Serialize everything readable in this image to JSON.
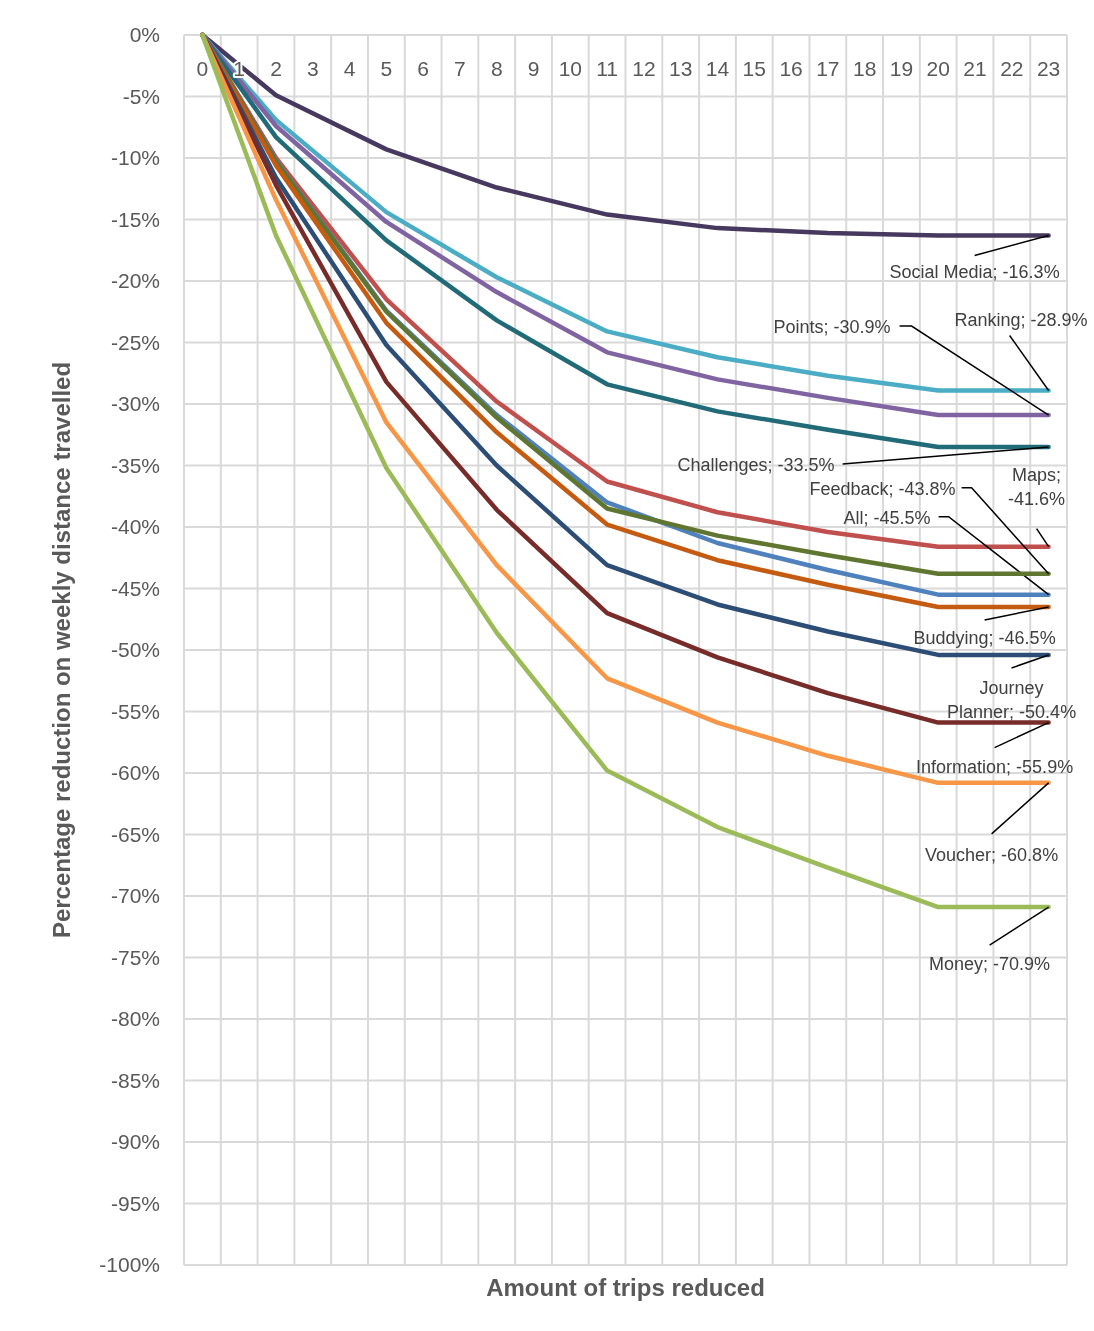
{
  "chart_data": {
    "type": "line",
    "xlabel": "Amount of trips reduced",
    "ylabel": "Percentage reduction on weekly distance travelled",
    "xlim": [
      -0.5,
      23.5
    ],
    "xticks": [
      0,
      1,
      2,
      3,
      4,
      5,
      6,
      7,
      8,
      9,
      10,
      11,
      12,
      13,
      14,
      15,
      16,
      17,
      18,
      19,
      20,
      21,
      22,
      23
    ],
    "ylim": [
      -100,
      0
    ],
    "yticks": [
      {
        "value": 0,
        "label": "0%"
      },
      {
        "value": -5,
        "label": "-5%"
      },
      {
        "value": -10,
        "label": "-10%"
      },
      {
        "value": -15,
        "label": "-15%"
      },
      {
        "value": -20,
        "label": "-20%"
      },
      {
        "value": -25,
        "label": "-25%"
      },
      {
        "value": -30,
        "label": "-30%"
      },
      {
        "value": -35,
        "label": "-35%"
      },
      {
        "value": -40,
        "label": "-40%"
      },
      {
        "value": -45,
        "label": "-45%"
      },
      {
        "value": -50,
        "label": "-50%"
      },
      {
        "value": -55,
        "label": "-55%"
      },
      {
        "value": -60,
        "label": "-60%"
      },
      {
        "value": -65,
        "label": "-65%"
      },
      {
        "value": -70,
        "label": "-70%"
      },
      {
        "value": -75,
        "label": "-75%"
      },
      {
        "value": -80,
        "label": "-80%"
      },
      {
        "value": -85,
        "label": "-85%"
      },
      {
        "value": -90,
        "label": "-90%"
      },
      {
        "value": -95,
        "label": "-95%"
      },
      {
        "value": -100,
        "label": "-100%"
      }
    ],
    "grid": true,
    "marker": "none",
    "line_style": "solid",
    "x": [
      0,
      2,
      5,
      8,
      11,
      14,
      17,
      20,
      23
    ],
    "series": [
      {
        "color": "#46385e",
        "values": [
          0,
          -4.9,
          -9.3,
          -12.4,
          -14.6,
          -15.7,
          -16.1,
          -16.3,
          -16.3
        ],
        "value_labels": [
          null,
          null,
          null,
          null,
          null,
          null,
          null,
          null,
          "Social Media; -16.3%"
        ]
      },
      {
        "color": "#4bacc6",
        "values": [
          0,
          -6.9,
          -14.4,
          -19.7,
          -24.1,
          -26.2,
          -27.7,
          -28.9,
          -28.9
        ],
        "value_labels": [
          null,
          null,
          null,
          null,
          null,
          null,
          null,
          null,
          "Ranking; -28.9%"
        ]
      },
      {
        "color": "#8064a2",
        "values": [
          0,
          -7.4,
          -15.2,
          -20.9,
          -25.8,
          -28.0,
          -29.5,
          -30.9,
          -30.9
        ],
        "value_labels": [
          null,
          null,
          null,
          null,
          null,
          null,
          null,
          null,
          "Points; -30.9%"
        ]
      },
      {
        "color": "#216b78",
        "values": [
          0,
          -8.3,
          -16.7,
          -23.2,
          -28.4,
          -30.6,
          -32.1,
          -33.5,
          -33.5
        ],
        "value_labels": [
          null,
          null,
          null,
          null,
          null,
          null,
          null,
          null,
          "Challenges; -33.5%"
        ]
      },
      {
        "color": "#c0504d",
        "values": [
          0,
          -10.0,
          -21.5,
          -29.8,
          -36.3,
          -38.8,
          -40.4,
          -41.6,
          -41.6
        ],
        "value_labels": [
          null,
          null,
          null,
          null,
          null,
          null,
          null,
          null,
          "Maps; -41.6%"
        ]
      },
      {
        "color": "#4f81bd",
        "values": [
          0,
          -10.2,
          -22.4,
          -30.9,
          -38.0,
          -41.3,
          -43.5,
          -45.5,
          -45.5
        ],
        "value_labels": [
          null,
          null,
          null,
          null,
          null,
          null,
          null,
          null,
          "All; -45.5%"
        ]
      },
      {
        "color": "#5f7530",
        "values": [
          0,
          -10.3,
          -22.5,
          -31.1,
          -38.5,
          -40.7,
          -42.3,
          -43.8,
          -43.8
        ],
        "value_labels": [
          null,
          null,
          null,
          null,
          null,
          null,
          null,
          null,
          "Feedback; -43.8%"
        ]
      },
      {
        "color": "#c55a11",
        "values": [
          0,
          -10.6,
          -23.4,
          -32.3,
          -39.8,
          -42.7,
          -44.7,
          -46.5,
          -46.5
        ],
        "value_labels": [
          null,
          null,
          null,
          null,
          null,
          null,
          null,
          null,
          "Buddying; -46.5%"
        ]
      },
      {
        "color": "#2c4d75",
        "values": [
          0,
          -11.6,
          -25.2,
          -35.0,
          -43.1,
          -46.3,
          -48.5,
          -50.4,
          -50.4
        ],
        "value_labels": [
          null,
          null,
          null,
          null,
          null,
          null,
          null,
          null,
          "Journey Planner; -50.4%"
        ]
      },
      {
        "color": "#772c2a",
        "values": [
          0,
          -12.2,
          -28.2,
          -38.6,
          -47.0,
          -50.6,
          -53.5,
          -55.9,
          -55.9
        ],
        "value_labels": [
          null,
          null,
          null,
          null,
          null,
          null,
          null,
          null,
          "Information; -55.9%"
        ]
      },
      {
        "color": "#f79646",
        "values": [
          0,
          -13.4,
          -31.5,
          -43.1,
          -52.3,
          -55.9,
          -58.6,
          -60.8,
          -60.8
        ],
        "value_labels": [
          null,
          null,
          null,
          null,
          null,
          null,
          null,
          null,
          "Voucher; -60.8%"
        ]
      },
      {
        "color": "#9bbb59",
        "values": [
          0,
          -16.3,
          -35.2,
          -48.6,
          -59.8,
          -64.4,
          -67.7,
          -70.9,
          -70.9
        ],
        "value_labels": [
          null,
          null,
          null,
          null,
          null,
          null,
          null,
          null,
          "Money; -70.9%"
        ]
      }
    ]
  }
}
